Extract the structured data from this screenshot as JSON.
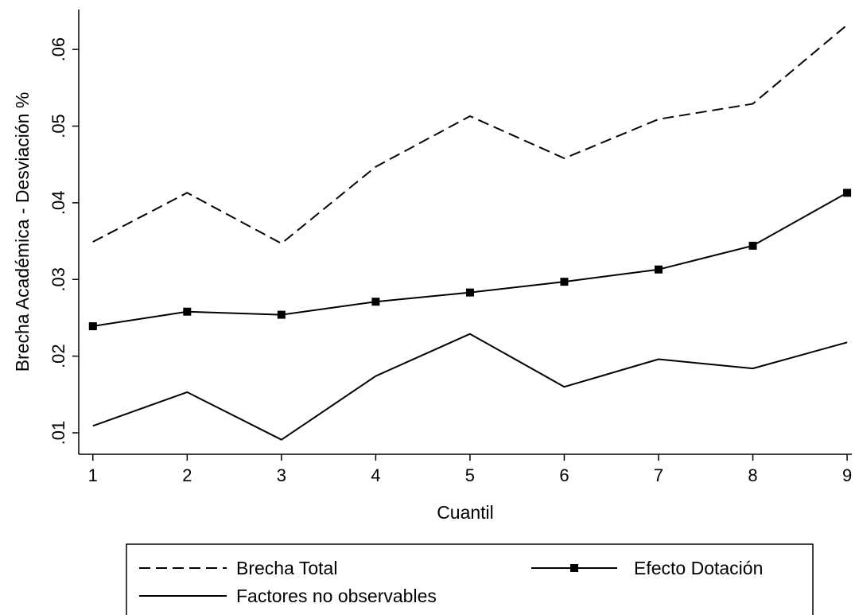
{
  "chart_data": {
    "type": "line",
    "title": "",
    "xlabel": "Cuantil",
    "ylabel": "Brecha Académica - Desviación %",
    "x": [
      1,
      2,
      3,
      4,
      5,
      6,
      7,
      8,
      9
    ],
    "xticks": [
      "1",
      "2",
      "3",
      "4",
      "5",
      "6",
      "7",
      "8",
      "9"
    ],
    "yticks": [
      0.01,
      0.02,
      0.03,
      0.04,
      0.05,
      0.06
    ],
    "ytick_labels": [
      ".01",
      ".02",
      ".03",
      ".04",
      ".05",
      ".06"
    ],
    "xlim": [
      0.85,
      9.05
    ],
    "ylim": [
      0.0072,
      0.0652
    ],
    "grid": false,
    "legend_position": "bottom",
    "series": [
      {
        "name": "Brecha Total",
        "style": "dashed",
        "marker": "none",
        "color": "#000000",
        "values": [
          0.0349,
          0.0413,
          0.0347,
          0.0447,
          0.0513,
          0.0458,
          0.0509,
          0.0529,
          0.0632
        ]
      },
      {
        "name": "Efecto Dotación",
        "style": "solid",
        "marker": "square",
        "color": "#000000",
        "values": [
          0.0239,
          0.0258,
          0.0254,
          0.0271,
          0.0283,
          0.0297,
          0.0313,
          0.0344,
          0.0413
        ]
      },
      {
        "name": "Factores no observables",
        "style": "solid",
        "marker": "none",
        "color": "#000000",
        "values": [
          0.0109,
          0.0153,
          0.0091,
          0.0174,
          0.0229,
          0.016,
          0.0196,
          0.0184,
          0.0218
        ]
      }
    ]
  }
}
